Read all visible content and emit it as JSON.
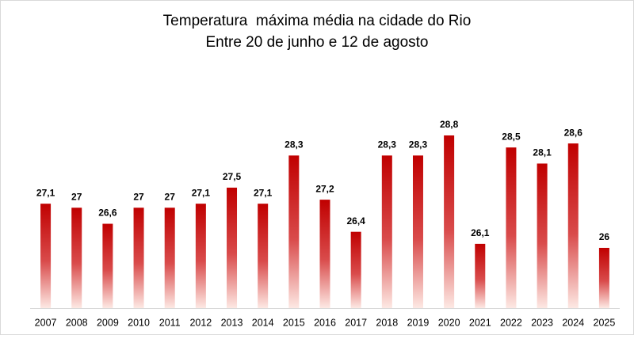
{
  "chart_data": {
    "type": "bar",
    "title": "Temperatura  máxima média na cidade do Rio",
    "subtitle": "Entre 20 de junho e 12 de agosto",
    "categories": [
      "2007",
      "2008",
      "2009",
      "2010",
      "2011",
      "2012",
      "2013",
      "2014",
      "2015",
      "2016",
      "2017",
      "2018",
      "2019",
      "2020",
      "2021",
      "2022",
      "2023",
      "2024",
      "2025"
    ],
    "values": [
      27.1,
      27,
      26.6,
      27,
      27,
      27.1,
      27.5,
      27.1,
      28.3,
      27.2,
      26.4,
      28.3,
      28.3,
      28.8,
      26.1,
      28.5,
      28.1,
      28.6,
      26
    ],
    "value_labels": [
      "27,1",
      "27",
      "26,6",
      "27",
      "27",
      "27,1",
      "27,5",
      "27,1",
      "28,3",
      "27,2",
      "26,4",
      "28,3",
      "28,3",
      "28,8",
      "26,1",
      "28,5",
      "28,1",
      "28,6",
      "26"
    ],
    "color": "#c00000",
    "ylim": [
      24.5,
      29.5
    ]
  }
}
